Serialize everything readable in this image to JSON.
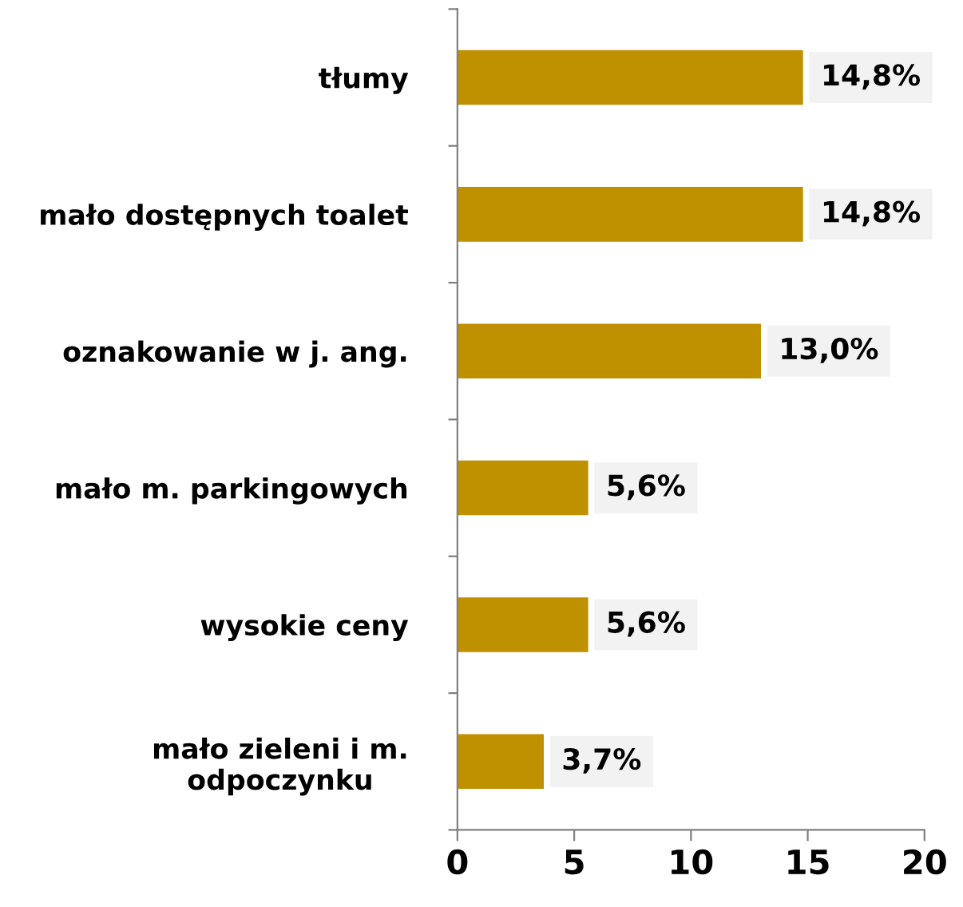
{
  "chart_data": {
    "type": "bar",
    "orientation": "horizontal",
    "categories": [
      "tłumy",
      "mało dostępnych toalet",
      "oznakowanie w j. ang.",
      "mało m. parkingowych",
      "wysokie ceny",
      "mało zieleni i m.\nodpoczynku"
    ],
    "values": [
      14.8,
      14.8,
      13.0,
      5.6,
      5.6,
      3.7
    ],
    "value_labels": [
      "14,8%",
      "14,8%",
      "13,0%",
      "5,6%",
      "5,6%",
      "3,7%"
    ],
    "color": "#bf9000",
    "xlim": [
      0,
      20
    ],
    "xticks": [
      0,
      5,
      10,
      15,
      20
    ],
    "grid": false,
    "legend": false
  }
}
